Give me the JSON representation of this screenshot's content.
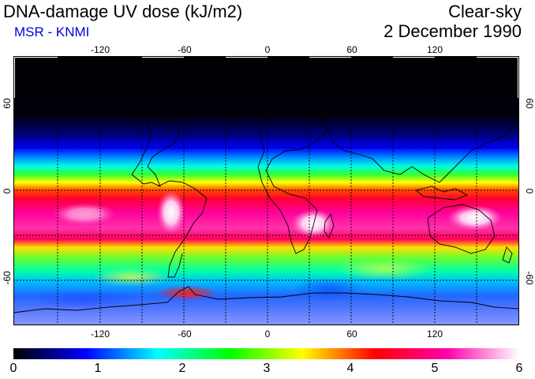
{
  "header": {
    "title": "DNA-damage UV dose (kJ/m2)",
    "subtitle": "MSR - KNMI",
    "condition": "Clear-sky",
    "date": "2 December 1990"
  },
  "map": {
    "longitude_ticks": [
      "-120",
      "-60",
      "0",
      "60",
      "120"
    ],
    "latitude_ticks_left": [
      "60",
      "0",
      "-60"
    ],
    "latitude_ticks_right": [
      "60",
      "0",
      "-60"
    ]
  },
  "colorbar": {
    "labels": [
      "0",
      "1",
      "2",
      "3",
      "4",
      "5",
      "6"
    ],
    "stops": [
      "#000000",
      "#0000ff",
      "#00ffff",
      "#00ff00",
      "#ffff00",
      "#ff0000",
      "#ff00aa",
      "#ffffff"
    ]
  },
  "colors": {
    "subtitle": "#0000dd"
  }
}
